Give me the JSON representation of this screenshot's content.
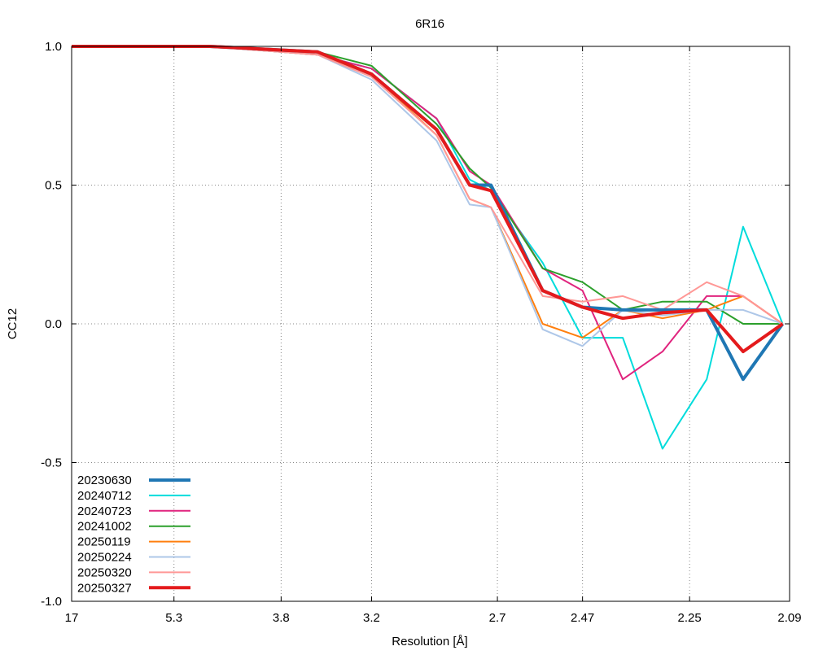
{
  "chart_data": {
    "type": "line",
    "title": "6R16",
    "xlabel": "Resolution [Å]",
    "ylabel": "CC12",
    "ylim": [
      -1.0,
      1.0
    ],
    "xlim_d": [
      17,
      2.09
    ],
    "x_scale": "1/d^2",
    "y_ticks": [
      1.0,
      0.5,
      0.0,
      -0.5,
      -1.0
    ],
    "y_tick_labels": [
      "1.0",
      "0.5",
      "0.0",
      "-0.5",
      "-1.0"
    ],
    "x_ticks_d": [
      17,
      5.3,
      3.8,
      3.2,
      2.7,
      2.47,
      2.25,
      2.09
    ],
    "x_tick_labels": [
      "17",
      "5.3",
      "3.8",
      "3.2",
      "2.7",
      "2.47",
      "2.25",
      "2.09"
    ],
    "grid": true,
    "legend_position": "bottom-left",
    "x": [
      17.0,
      4.62,
      3.52,
      3.2,
      2.91,
      2.79,
      2.72,
      2.57,
      2.47,
      2.38,
      2.3,
      2.22,
      2.16,
      2.1
    ],
    "series": [
      {
        "name": "20230630",
        "color": "#1f77b4",
        "width": 4,
        "values": [
          1.0,
          1.0,
          0.98,
          0.9,
          0.7,
          0.5,
          0.5,
          0.12,
          0.06,
          0.05,
          0.05,
          0.05,
          -0.2,
          0.0
        ]
      },
      {
        "name": "20240712",
        "color": "#00dcdc",
        "width": 2,
        "values": [
          1.0,
          1.0,
          0.97,
          0.92,
          0.74,
          0.52,
          0.48,
          0.22,
          -0.05,
          -0.05,
          -0.45,
          -0.2,
          0.35,
          0.0
        ]
      },
      {
        "name": "20240723",
        "color": "#e0247e",
        "width": 2,
        "values": [
          1.0,
          1.0,
          0.97,
          0.92,
          0.74,
          0.55,
          0.5,
          0.2,
          0.12,
          -0.2,
          -0.1,
          0.1,
          0.1,
          0.0
        ]
      },
      {
        "name": "20241002",
        "color": "#2ca02c",
        "width": 2,
        "values": [
          1.0,
          1.0,
          0.98,
          0.93,
          0.72,
          0.56,
          0.49,
          0.2,
          0.15,
          0.05,
          0.08,
          0.08,
          0.0,
          0.0
        ]
      },
      {
        "name": "20250119",
        "color": "#ff7f0e",
        "width": 2,
        "values": [
          1.0,
          1.0,
          0.97,
          0.9,
          0.68,
          0.45,
          0.42,
          0.0,
          -0.05,
          0.05,
          0.02,
          0.05,
          0.1,
          0.0
        ]
      },
      {
        "name": "20250224",
        "color": "#aec7e8",
        "width": 2,
        "values": [
          1.0,
          1.0,
          0.97,
          0.88,
          0.66,
          0.43,
          0.42,
          -0.02,
          -0.08,
          0.05,
          0.03,
          0.05,
          0.05,
          0.0
        ]
      },
      {
        "name": "20250320",
        "color": "#ff9896",
        "width": 2,
        "values": [
          1.0,
          1.0,
          0.97,
          0.89,
          0.68,
          0.45,
          0.42,
          0.1,
          0.08,
          0.1,
          0.05,
          0.15,
          0.1,
          0.0
        ]
      },
      {
        "name": "20250327",
        "color": "#e41a1c",
        "width": 4,
        "values": [
          1.0,
          1.0,
          0.98,
          0.9,
          0.7,
          0.5,
          0.48,
          0.12,
          0.06,
          0.02,
          0.04,
          0.05,
          -0.1,
          0.0
        ]
      }
    ]
  }
}
